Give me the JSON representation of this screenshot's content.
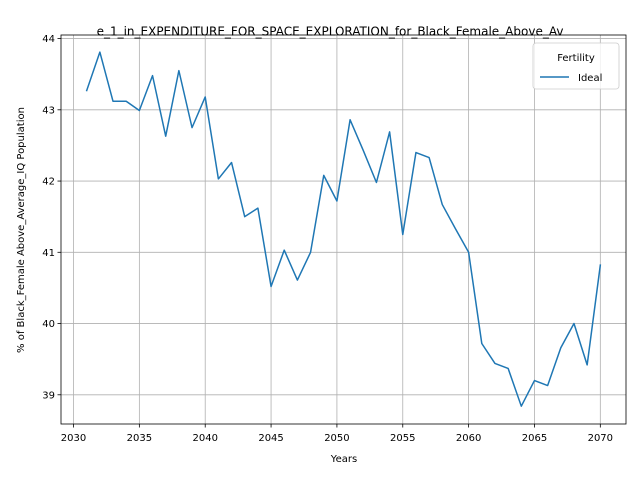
{
  "chart_data": {
    "type": "line",
    "title": "e_1_in_EXPENDITURE_FOR_SPACE_EXPLORATION_for_Black_Female_Above_Av",
    "xlabel": "Years",
    "ylabel": "% of Black_Female Above_Average_IQ Population",
    "xlim": [
      2029.05,
      2071.95
    ],
    "ylim": [
      38.59,
      44.05
    ],
    "xticks": [
      2030,
      2035,
      2040,
      2045,
      2050,
      2055,
      2060,
      2065,
      2070
    ],
    "yticks": [
      39,
      40,
      41,
      42,
      43,
      44
    ],
    "grid": true,
    "legend": {
      "title": "Fertility",
      "position": "top-right"
    },
    "series": [
      {
        "name": "Ideal",
        "color": "#1f77b4",
        "x": [
          2031,
          2032,
          2033,
          2034,
          2035,
          2036,
          2037,
          2038,
          2039,
          2040,
          2041,
          2042,
          2043,
          2044,
          2045,
          2046,
          2047,
          2048,
          2049,
          2050,
          2051,
          2052,
          2053,
          2054,
          2055,
          2056,
          2057,
          2058,
          2059,
          2060,
          2061,
          2062,
          2063,
          2064,
          2065,
          2066,
          2067,
          2068,
          2069,
          2070
        ],
        "values": [
          43.27,
          43.81,
          43.12,
          43.12,
          42.99,
          43.48,
          42.63,
          43.55,
          42.75,
          43.18,
          42.03,
          42.26,
          41.5,
          41.62,
          40.52,
          41.03,
          40.61,
          41.0,
          42.08,
          41.72,
          42.86,
          42.43,
          41.98,
          42.69,
          41.25,
          42.4,
          42.33,
          41.67,
          41.33,
          41.0,
          39.72,
          39.44,
          39.37,
          38.84,
          39.2,
          39.13,
          39.66,
          40.0,
          39.42,
          40.82
        ]
      }
    ]
  }
}
